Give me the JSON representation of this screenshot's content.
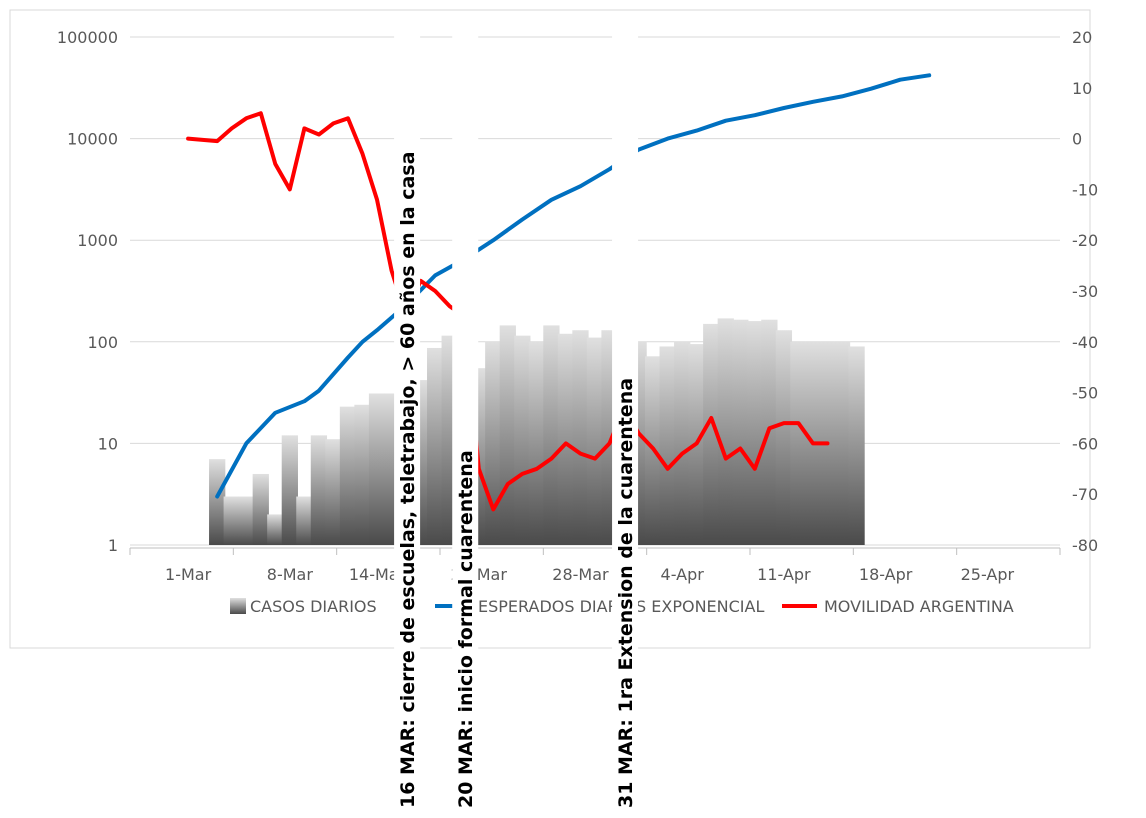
{
  "chart_data": {
    "type": "bar+line",
    "title": "",
    "xlabel": "",
    "ylabel": "",
    "y_axis_left": {
      "scale": "log",
      "range": [
        1,
        100000
      ],
      "ticks": [
        "100000",
        "10000",
        "1000",
        "100",
        "10",
        "1"
      ]
    },
    "y_axis_right": {
      "range": [
        -80,
        20
      ],
      "ticks": [
        "20",
        "10",
        "0",
        "-10",
        "-20",
        "-30",
        "-40",
        "-50",
        "-60",
        "-70",
        "-80"
      ]
    },
    "x_axis": {
      "range": [
        "2020-02-26",
        "2020-04-30"
      ],
      "tick_dates": [
        "2020-03-01",
        "2020-03-08",
        "2020-03-14",
        "2020-03-21",
        "2020-03-28",
        "2020-04-04",
        "2020-04-11",
        "2020-04-18",
        "2020-04-25"
      ],
      "tick_labels": [
        "1-Mar",
        "8-Mar",
        "14-Mar",
        "21-Mar",
        "28-Mar",
        "4-Apr",
        "11-Apr",
        "18-Apr",
        "25-Apr"
      ]
    },
    "grid": "horizontal",
    "legend_position": "bottom",
    "legend": [
      "CASOS DIARIOS",
      "ESPERADOS DIARIOS EXPONENCIAL",
      "MOVILIDAD ARGENTINA"
    ],
    "series": [
      {
        "name": "CASOS DIARIOS",
        "type": "bar",
        "axis": "left",
        "color": "#808080",
        "points": [
          [
            "2020-03-03",
            7
          ],
          [
            "2020-03-04",
            3
          ],
          [
            "2020-03-05",
            3
          ],
          [
            "2020-03-06",
            5
          ],
          [
            "2020-03-07",
            2
          ],
          [
            "2020-03-08",
            12
          ],
          [
            "2020-03-09",
            3
          ],
          [
            "2020-03-10",
            12
          ],
          [
            "2020-03-11",
            11
          ],
          [
            "2020-03-12",
            23
          ],
          [
            "2020-03-13",
            24
          ],
          [
            "2020-03-14",
            31
          ],
          [
            "2020-03-15",
            31
          ],
          [
            "2020-03-16",
            67
          ],
          [
            "2020-03-17",
            42
          ],
          [
            "2020-03-18",
            87
          ],
          [
            "2020-03-19",
            115
          ],
          [
            "2020-03-20",
            100
          ],
          [
            "2020-03-21",
            55
          ],
          [
            "2020-03-22",
            100
          ],
          [
            "2020-03-23",
            145
          ],
          [
            "2020-03-24",
            115
          ],
          [
            "2020-03-25",
            100
          ],
          [
            "2020-03-26",
            145
          ],
          [
            "2020-03-27",
            120
          ],
          [
            "2020-03-28",
            130
          ],
          [
            "2020-03-29",
            110
          ],
          [
            "2020-03-30",
            130
          ],
          [
            "2020-03-31",
            104
          ],
          [
            "2020-04-01",
            100
          ],
          [
            "2020-04-02",
            72
          ],
          [
            "2020-04-03",
            90
          ],
          [
            "2020-04-04",
            100
          ],
          [
            "2020-04-05",
            95
          ],
          [
            "2020-04-06",
            150
          ],
          [
            "2020-04-07",
            170
          ],
          [
            "2020-04-08",
            165
          ],
          [
            "2020-04-09",
            160
          ],
          [
            "2020-04-10",
            165
          ],
          [
            "2020-04-11",
            130
          ],
          [
            "2020-04-12",
            100
          ],
          [
            "2020-04-13",
            100
          ],
          [
            "2020-04-14",
            100
          ],
          [
            "2020-04-15",
            100
          ],
          [
            "2020-04-16",
            90
          ]
        ]
      },
      {
        "name": "ESPERADOS DIARIOS EXPONENCIAL",
        "type": "line",
        "axis": "left",
        "color": "#0070C0",
        "points": [
          [
            "2020-03-03",
            3
          ],
          [
            "2020-03-05",
            10
          ],
          [
            "2020-03-07",
            20
          ],
          [
            "2020-03-09",
            26
          ],
          [
            "2020-03-10",
            33
          ],
          [
            "2020-03-12",
            70
          ],
          [
            "2020-03-13",
            100
          ],
          [
            "2020-03-14",
            130
          ],
          [
            "2020-03-16",
            230
          ],
          [
            "2020-03-18",
            450
          ],
          [
            "2020-03-20",
            650
          ],
          [
            "2020-03-22",
            1000
          ],
          [
            "2020-03-24",
            1600
          ],
          [
            "2020-03-26",
            2500
          ],
          [
            "2020-03-28",
            3400
          ],
          [
            "2020-03-30",
            5000
          ],
          [
            "2020-04-01",
            7800
          ],
          [
            "2020-04-03",
            10000
          ],
          [
            "2020-04-05",
            12000
          ],
          [
            "2020-04-07",
            15000
          ],
          [
            "2020-04-09",
            17000
          ],
          [
            "2020-04-11",
            20000
          ],
          [
            "2020-04-13",
            23000
          ],
          [
            "2020-04-15",
            26000
          ],
          [
            "2020-04-17",
            31000
          ],
          [
            "2020-04-19",
            38000
          ],
          [
            "2020-04-21",
            42000
          ]
        ]
      },
      {
        "name": "MOVILIDAD ARGENTINA",
        "type": "line",
        "axis": "right",
        "color": "#FF0000",
        "points": [
          [
            "2020-03-01",
            0
          ],
          [
            "2020-03-03",
            -0.5
          ],
          [
            "2020-03-04",
            2
          ],
          [
            "2020-03-05",
            4
          ],
          [
            "2020-03-06",
            5
          ],
          [
            "2020-03-07",
            -5
          ],
          [
            "2020-03-08",
            -10
          ],
          [
            "2020-03-09",
            2
          ],
          [
            "2020-03-10",
            0.8
          ],
          [
            "2020-03-11",
            3
          ],
          [
            "2020-03-12",
            4
          ],
          [
            "2020-03-13",
            -3
          ],
          [
            "2020-03-14",
            -12
          ],
          [
            "2020-03-15",
            -26
          ],
          [
            "2020-03-16",
            -35
          ],
          [
            "2020-03-17",
            -28
          ],
          [
            "2020-03-18",
            -30
          ],
          [
            "2020-03-19",
            -33
          ],
          [
            "2020-03-20",
            -35
          ],
          [
            "2020-03-21",
            -65
          ],
          [
            "2020-03-22",
            -73
          ],
          [
            "2020-03-23",
            -68
          ],
          [
            "2020-03-24",
            -66
          ],
          [
            "2020-03-25",
            -65
          ],
          [
            "2020-03-26",
            -63
          ],
          [
            "2020-03-27",
            -60
          ],
          [
            "2020-03-28",
            -62
          ],
          [
            "2020-03-29",
            -63
          ],
          [
            "2020-03-30",
            -60
          ],
          [
            "2020-03-31",
            -53
          ],
          [
            "2020-04-01",
            -58
          ],
          [
            "2020-04-02",
            -61
          ],
          [
            "2020-04-03",
            -65
          ],
          [
            "2020-04-04",
            -62
          ],
          [
            "2020-04-05",
            -60
          ],
          [
            "2020-04-06",
            -55
          ],
          [
            "2020-04-07",
            -63
          ],
          [
            "2020-04-08",
            -61
          ],
          [
            "2020-04-09",
            -65
          ],
          [
            "2020-04-10",
            -57
          ],
          [
            "2020-04-11",
            -56
          ],
          [
            "2020-04-12",
            -56
          ],
          [
            "2020-04-13",
            -60
          ],
          [
            "2020-04-14",
            -60
          ]
        ]
      }
    ],
    "annotations": [
      {
        "text": "16 MAR: cierre de escuelas, teletrabajo, > 60 años en la casa",
        "date": "2020-03-16"
      },
      {
        "text": "20 MAR: inicio formal cuarentena",
        "date": "2020-03-20"
      },
      {
        "text": "31 MAR: 1ra Extension de la cuarentena",
        "date": "2020-03-31"
      }
    ]
  }
}
